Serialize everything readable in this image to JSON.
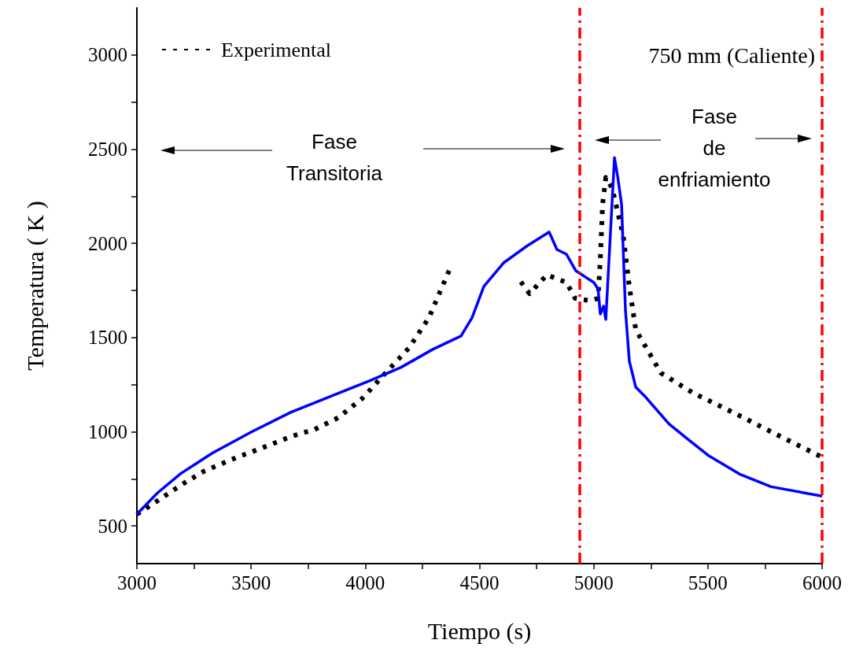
{
  "chart_data": {
    "type": "line",
    "xlabel": "Tiempo (s)",
    "ylabel": "Temperatura ( K )",
    "xlim": [
      3000,
      6000
    ],
    "xticks": [
      3000,
      {
        "value": 3250,
        "label": null
      },
      3500,
      {
        "value": 3750,
        "label": null
      },
      4000,
      {
        "value": 4250,
        "label": null
      },
      4500,
      {
        "value": 4750,
        "label": null
      },
      5000,
      {
        "value": 5250,
        "label": null
      },
      5500,
      {
        "value": 5750,
        "label": null
      },
      6000
    ],
    "ylim": [
      300,
      3250
    ],
    "yticks": [
      500,
      {
        "value": 750,
        "label": null
      },
      1000,
      {
        "value": 1250,
        "label": null
      },
      1500,
      {
        "value": 1750,
        "label": null
      },
      2000,
      {
        "value": 2250,
        "label": null
      },
      2500,
      {
        "value": 2750,
        "label": null
      },
      3000
    ],
    "grid": false,
    "legend": "top left",
    "marker": "none",
    "series": [
      {
        "name": "Experimental",
        "color": "#000000",
        "line_style": "dotted",
        "x": [
          3000,
          3090,
          3193,
          3296,
          3434,
          3572,
          3675,
          3778,
          3882,
          3985,
          4089,
          4192,
          4278,
          4371,
          4500,
          4681,
          4719,
          4795,
          4881,
          4919,
          4984,
          5019,
          5029,
          5039,
          5053,
          5081,
          5129,
          5156,
          5184,
          5294,
          5432,
          5621,
          5811,
          5983,
          6000
        ],
        "values": [
          562,
          633,
          717,
          792,
          862,
          925,
          975,
          1012,
          1075,
          1175,
          1312,
          1446,
          1604,
          1867,
          null,
          1796,
          1733,
          1833,
          1792,
          1708,
          1696,
          1708,
          1917,
          2208,
          2350,
          2292,
          2042,
          1771,
          1542,
          1312,
          1208,
          1096,
          979,
          875,
          867
        ]
      },
      {
        "color": "#0000ff",
        "line_style": "solid",
        "x": [
          3000,
          3090,
          3193,
          3331,
          3503,
          3675,
          3847,
          4020,
          4157,
          4295,
          4419,
          4467,
          4519,
          4605,
          4709,
          4805,
          4839,
          4881,
          4922,
          5001,
          5019,
          5029,
          5043,
          5053,
          5091,
          5105,
          5122,
          5139,
          5156,
          5184,
          5225,
          5329,
          5415,
          5501,
          5639,
          5777,
          6000
        ],
        "values": [
          562,
          675,
          779,
          887,
          1000,
          1104,
          1187,
          1271,
          1342,
          1437,
          1508,
          1604,
          1771,
          1896,
          1987,
          2060,
          1967,
          1942,
          1854,
          1792,
          1758,
          1625,
          1667,
          1596,
          2455,
          2354,
          2208,
          1646,
          1375,
          1237,
          1187,
          1042,
          958,
          875,
          775,
          708,
          658
        ]
      }
    ],
    "ref_lines": [
      {
        "axis": "x",
        "value": 4940,
        "color": "#ff0000",
        "line_style": "dashed"
      },
      {
        "axis": "x",
        "value": 6000,
        "color": "#ff0000",
        "line_style": "dashed"
      }
    ],
    "annotations": [
      "750 mm (Caliente)",
      "Fase\nTransitoria",
      "Fase\nde\nenfriamiento"
    ]
  }
}
